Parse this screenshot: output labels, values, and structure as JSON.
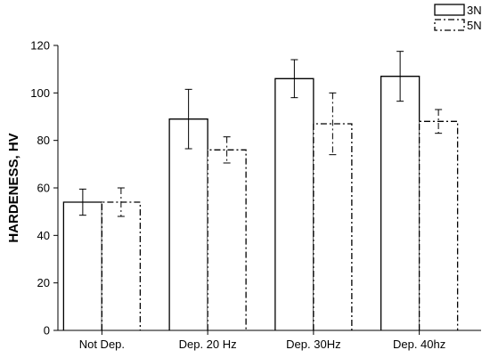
{
  "chart_data": {
    "type": "bar",
    "title": "",
    "xlabel": "",
    "ylabel": "HARDENESS, HV",
    "ylim": [
      0,
      120
    ],
    "yticks": [
      0,
      20,
      40,
      60,
      80,
      100,
      120
    ],
    "categories": [
      "Not Dep.",
      "Dep. 20 Hz",
      "Dep. 30Hz",
      "Dep. 40hz"
    ],
    "series": [
      {
        "name": "3N",
        "line_style": "solid",
        "values": [
          54,
          89,
          106,
          107
        ],
        "error": [
          5.5,
          12.5,
          8,
          10.5
        ]
      },
      {
        "name": "5N",
        "line_style": "dash-dot",
        "values": [
          54,
          76,
          87,
          88
        ],
        "error": [
          6,
          5.5,
          13,
          5
        ]
      }
    ],
    "grid": false,
    "legend_position": "top-right",
    "colors": {
      "bar_stroke": "#000000",
      "bar_fill": "#ffffff"
    }
  }
}
